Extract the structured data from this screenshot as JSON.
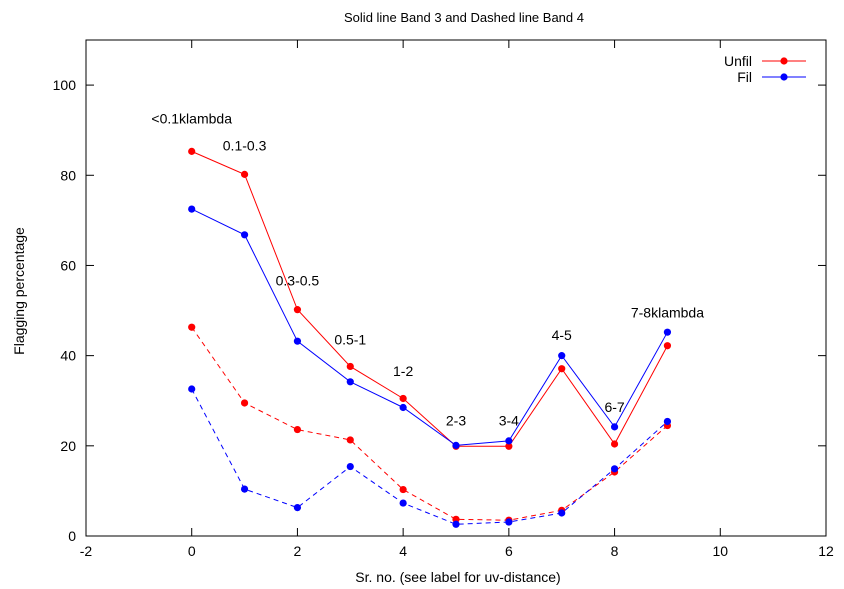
{
  "chart_data": {
    "type": "line",
    "title": "Solid line Band 3 and Dashed line Band 4",
    "xlabel": "Sr. no. (see label for uv-distance)",
    "ylabel": "Flagging percentage",
    "xlim": [
      -2,
      12
    ],
    "ylim": [
      0,
      110
    ],
    "x_ticks": [
      -2,
      0,
      2,
      4,
      6,
      8,
      10,
      12
    ],
    "y_ticks": [
      0,
      20,
      40,
      60,
      80,
      100
    ],
    "grid": false,
    "legend_position": "top-right",
    "x": [
      0,
      1,
      2,
      3,
      4,
      5,
      6,
      7,
      8,
      9
    ],
    "series": [
      {
        "name": "Unfil",
        "band": "Band 3",
        "style": "solid",
        "color": "#ff0000",
        "values": [
          85.3,
          80.2,
          50.2,
          37.6,
          30.5,
          19.9,
          19.9,
          37.1,
          20.4,
          42.2
        ]
      },
      {
        "name": "Fil",
        "band": "Band 3",
        "style": "solid",
        "color": "#0000ff",
        "values": [
          72.5,
          66.8,
          43.2,
          34.2,
          28.5,
          20.1,
          21.1,
          40.0,
          24.2,
          45.2
        ]
      },
      {
        "band": "Band 4",
        "style": "dashed",
        "color": "#ff0000",
        "values": [
          46.3,
          29.5,
          23.6,
          21.3,
          10.3,
          3.7,
          3.5,
          5.7,
          14.2,
          24.5
        ]
      },
      {
        "band": "Band 4",
        "style": "dashed",
        "color": "#0000ff",
        "values": [
          32.6,
          10.4,
          6.3,
          15.4,
          7.3,
          2.6,
          3.1,
          5.1,
          14.9,
          25.4
        ]
      }
    ],
    "annotations": [
      {
        "text": "<0.1klambda",
        "x": 0,
        "y": 91.5
      },
      {
        "text": "0.1-0.3",
        "x": 1,
        "y": 85.5
      },
      {
        "text": "0.3-0.5",
        "x": 2,
        "y": 55.5
      },
      {
        "text": "0.5-1",
        "x": 3,
        "y": 42.5
      },
      {
        "text": "1-2",
        "x": 4,
        "y": 35.5
      },
      {
        "text": "2-3",
        "x": 5,
        "y": 24.5
      },
      {
        "text": "3-4",
        "x": 6,
        "y": 24.5
      },
      {
        "text": "4-5",
        "x": 7,
        "y": 43.5
      },
      {
        "text": "6-7",
        "x": 8,
        "y": 27.5
      },
      {
        "text": "7-8klambda",
        "x": 9,
        "y": 48.5
      }
    ]
  }
}
